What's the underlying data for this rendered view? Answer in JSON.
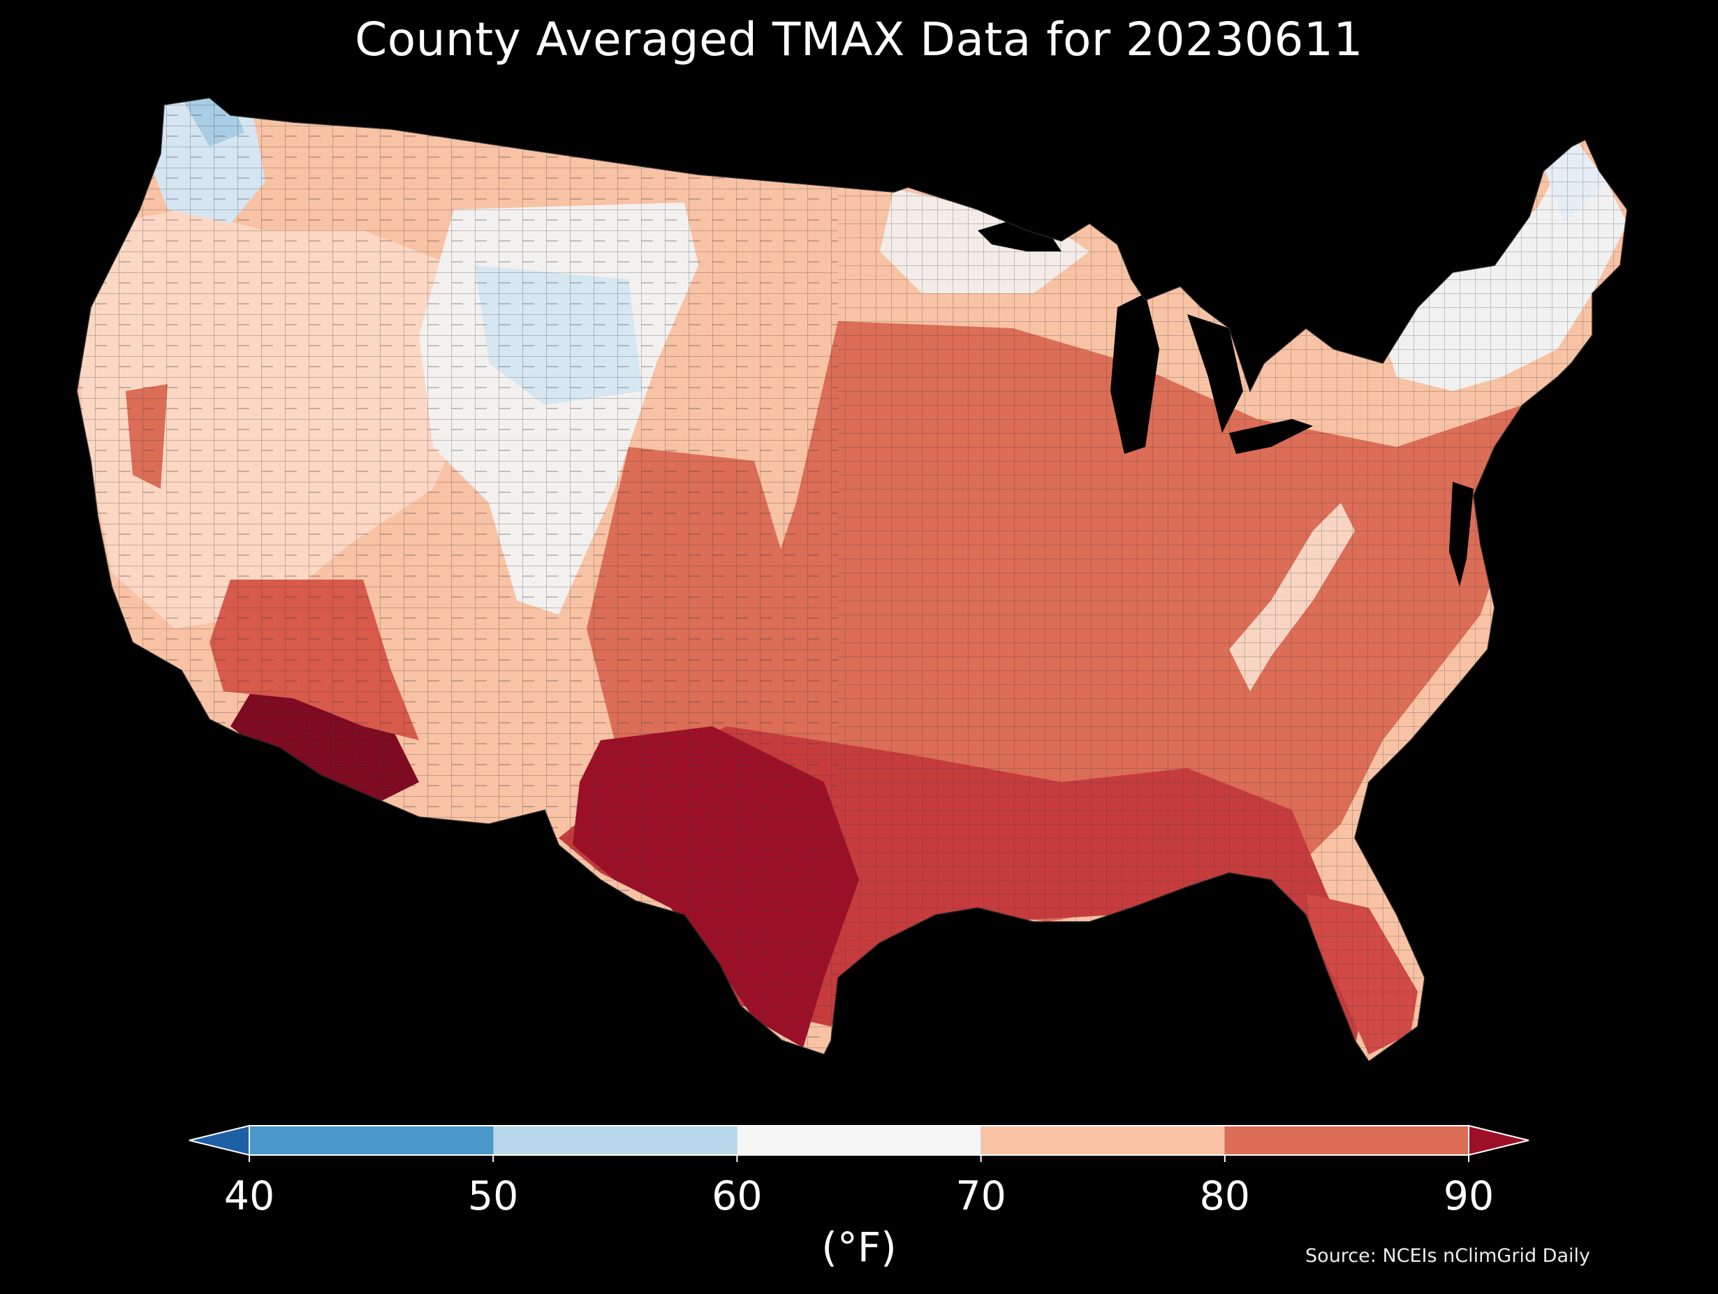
{
  "title": "County Averaged TMAX Data for 20230611",
  "colorbar": {
    "unit": "(°F)",
    "ticks": [
      "40",
      "50",
      "60",
      "70",
      "80",
      "90"
    ],
    "bins": [
      {
        "from": 40,
        "to": 50,
        "color": "#4a98c9"
      },
      {
        "from": 50,
        "to": 60,
        "color": "#b7d8ea"
      },
      {
        "from": 60,
        "to": 70,
        "color": "#f6f6f6"
      },
      {
        "from": 70,
        "to": 80,
        "color": "#f8c2a4"
      },
      {
        "from": 80,
        "to": 90,
        "color": "#dc6d57"
      }
    ],
    "under_color": "#1f5fa5",
    "over_color": "#9c1027"
  },
  "source": "Source: NCEIs nClimGrid Daily",
  "colors": {
    "background": "#000000",
    "county_border": "#3a3a3a"
  }
}
